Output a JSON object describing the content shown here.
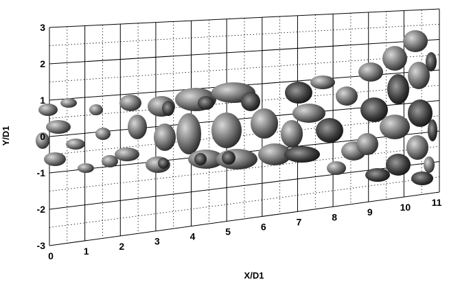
{
  "figure": {
    "x_axis": {
      "label": "X/D1",
      "ticks": [
        "0",
        "1",
        "2",
        "3",
        "4",
        "5",
        "6",
        "7",
        "8",
        "9",
        "10",
        "11"
      ]
    },
    "y_axis": {
      "label": "Y/D1",
      "ticks": [
        "3",
        "2",
        "1",
        "0",
        "-1",
        "-2",
        "-3"
      ]
    },
    "grid": {
      "major": true,
      "minor": "dotted"
    },
    "colors": {
      "grid": "#000000",
      "background": "#ffffff",
      "structures": "grayscale"
    }
  }
}
